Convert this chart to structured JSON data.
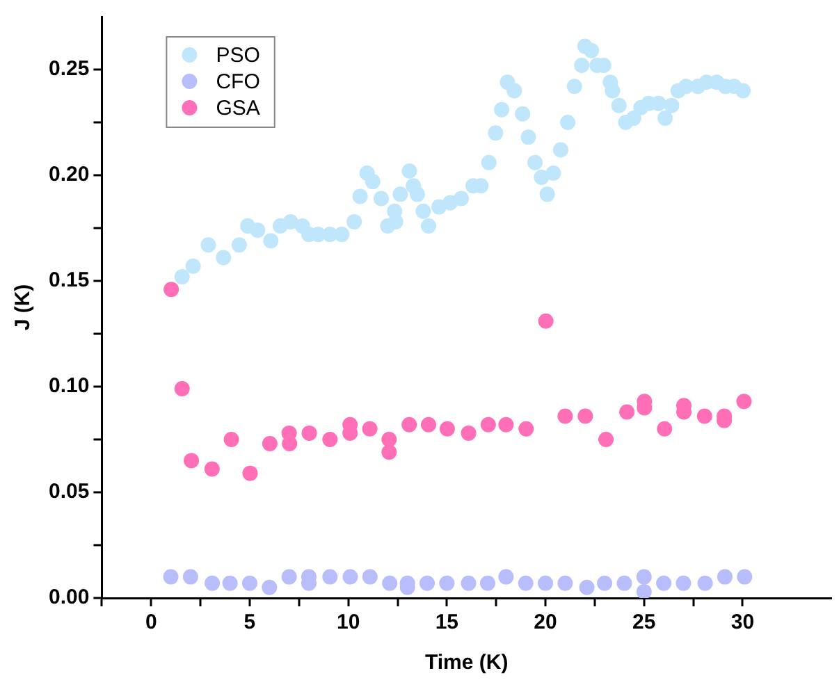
{
  "chart_data": {
    "type": "scatter",
    "xlabel": "Time (K)",
    "ylabel": "J (K)",
    "xlim": [
      -2.5,
      34.5
    ],
    "xticks": [
      {
        "value": -2.5,
        "label": null
      },
      0,
      {
        "value": 2.5,
        "label": null
      },
      5,
      {
        "value": 7.5,
        "label": null
      },
      10,
      {
        "value": 12.5,
        "label": null
      },
      15,
      {
        "value": 17.5,
        "label": null
      },
      20,
      {
        "value": 22.5,
        "label": null
      },
      25,
      {
        "value": 27.5,
        "label": null
      },
      30
    ],
    "ylim": [
      0,
      0.275
    ],
    "yticks": [
      {
        "value": 0,
        "label": "0.00"
      },
      {
        "value": 0.025,
        "label": null
      },
      {
        "value": 0.05,
        "label": "0.05"
      },
      {
        "value": 0.075,
        "label": null
      },
      {
        "value": 0.1,
        "label": "0.10"
      },
      {
        "value": 0.125,
        "label": null
      },
      {
        "value": 0.15,
        "label": "0.15"
      },
      {
        "value": 0.175,
        "label": null
      },
      {
        "value": 0.2,
        "label": "0.20"
      },
      {
        "value": 0.225,
        "label": null
      },
      {
        "value": 0.25,
        "label": "0.25"
      }
    ],
    "grid": false,
    "legend": "top left",
    "marker": "circle",
    "series": [
      {
        "name": "PSO",
        "color": "#bfe6fb",
        "x": [
          1.57,
          2.13,
          2.9,
          3.67,
          4.47,
          4.9,
          5.4,
          6.07,
          6.55,
          7.07,
          7.67,
          8.0,
          8.47,
          9.07,
          9.67,
          10.3,
          10.6,
          10.95,
          11.24,
          11.67,
          12.0,
          12.4,
          12.35,
          12.64,
          13.1,
          13.3,
          13.5,
          13.8,
          14.07,
          14.6,
          15.17,
          15.73,
          16.33,
          16.73,
          17.13,
          17.47,
          17.78,
          18.07,
          18.42,
          18.84,
          19.13,
          19.47,
          19.8,
          20.09,
          20.4,
          20.77,
          21.13,
          21.47,
          21.84,
          22.0,
          22.33,
          22.62,
          22.95,
          23.29,
          23.4,
          23.73,
          24.07,
          24.47,
          24.84,
          25.24,
          25.73,
          26.07,
          26.4,
          26.73,
          27.13,
          27.73,
          28.17,
          28.69,
          29.13,
          29.57,
          30.02
        ],
        "values": [
          0.152,
          0.157,
          0.167,
          0.161,
          0.167,
          0.176,
          0.174,
          0.169,
          0.176,
          0.178,
          0.176,
          0.172,
          0.172,
          0.172,
          0.172,
          0.178,
          0.19,
          0.201,
          0.197,
          0.189,
          0.176,
          0.178,
          0.183,
          0.191,
          0.202,
          0.195,
          0.191,
          0.183,
          0.176,
          0.185,
          0.187,
          0.189,
          0.195,
          0.195,
          0.206,
          0.22,
          0.231,
          0.244,
          0.24,
          0.229,
          0.218,
          0.206,
          0.199,
          0.191,
          0.201,
          0.212,
          0.225,
          0.242,
          0.252,
          0.261,
          0.259,
          0.252,
          0.252,
          0.244,
          0.24,
          0.233,
          0.225,
          0.227,
          0.232,
          0.234,
          0.234,
          0.227,
          0.233,
          0.24,
          0.242,
          0.242,
          0.244,
          0.244,
          0.242,
          0.242,
          0.24
        ]
      },
      {
        "name": "CFO",
        "color": "#b8bdfb",
        "x": [
          1.0,
          2.0,
          3.1,
          4.0,
          5.0,
          6.0,
          7.0,
          8.0,
          8.0,
          9.07,
          10.1,
          11.1,
          12.1,
          13.0,
          13.0,
          14.0,
          15.0,
          16.1,
          17.07,
          18.0,
          19.0,
          20.0,
          21.0,
          22.1,
          23.0,
          24.0,
          25.0,
          25.0,
          26.0,
          27.0,
          28.1,
          29.1,
          30.1
        ],
        "values": [
          0.01,
          0.01,
          0.007,
          0.007,
          0.007,
          0.005,
          0.01,
          0.01,
          0.007,
          0.01,
          0.01,
          0.01,
          0.007,
          0.007,
          0.005,
          0.007,
          0.007,
          0.007,
          0.007,
          0.01,
          0.007,
          0.007,
          0.007,
          0.005,
          0.007,
          0.007,
          0.01,
          0.003,
          0.007,
          0.007,
          0.007,
          0.01,
          0.01
        ]
      },
      {
        "name": "GSA",
        "color": "#ff6fb8",
        "x": [
          1.02,
          1.57,
          2.04,
          3.09,
          4.07,
          5.02,
          6.02,
          7.0,
          7.02,
          8.02,
          9.07,
          10.09,
          10.09,
          11.09,
          12.07,
          12.07,
          13.09,
          14.07,
          15.02,
          16.1,
          17.1,
          18.0,
          19.02,
          20.02,
          21.0,
          22.02,
          23.07,
          24.13,
          25.02,
          25.02,
          26.04,
          27.02,
          27.02,
          28.07,
          29.07,
          29.07,
          30.07
        ],
        "values": [
          0.146,
          0.099,
          0.065,
          0.061,
          0.075,
          0.059,
          0.073,
          0.078,
          0.073,
          0.078,
          0.075,
          0.082,
          0.078,
          0.08,
          0.075,
          0.069,
          0.082,
          0.082,
          0.08,
          0.078,
          0.082,
          0.082,
          0.08,
          0.131,
          0.086,
          0.086,
          0.075,
          0.088,
          0.093,
          0.09,
          0.08,
          0.091,
          0.088,
          0.086,
          0.086,
          0.084,
          0.093
        ]
      }
    ]
  }
}
